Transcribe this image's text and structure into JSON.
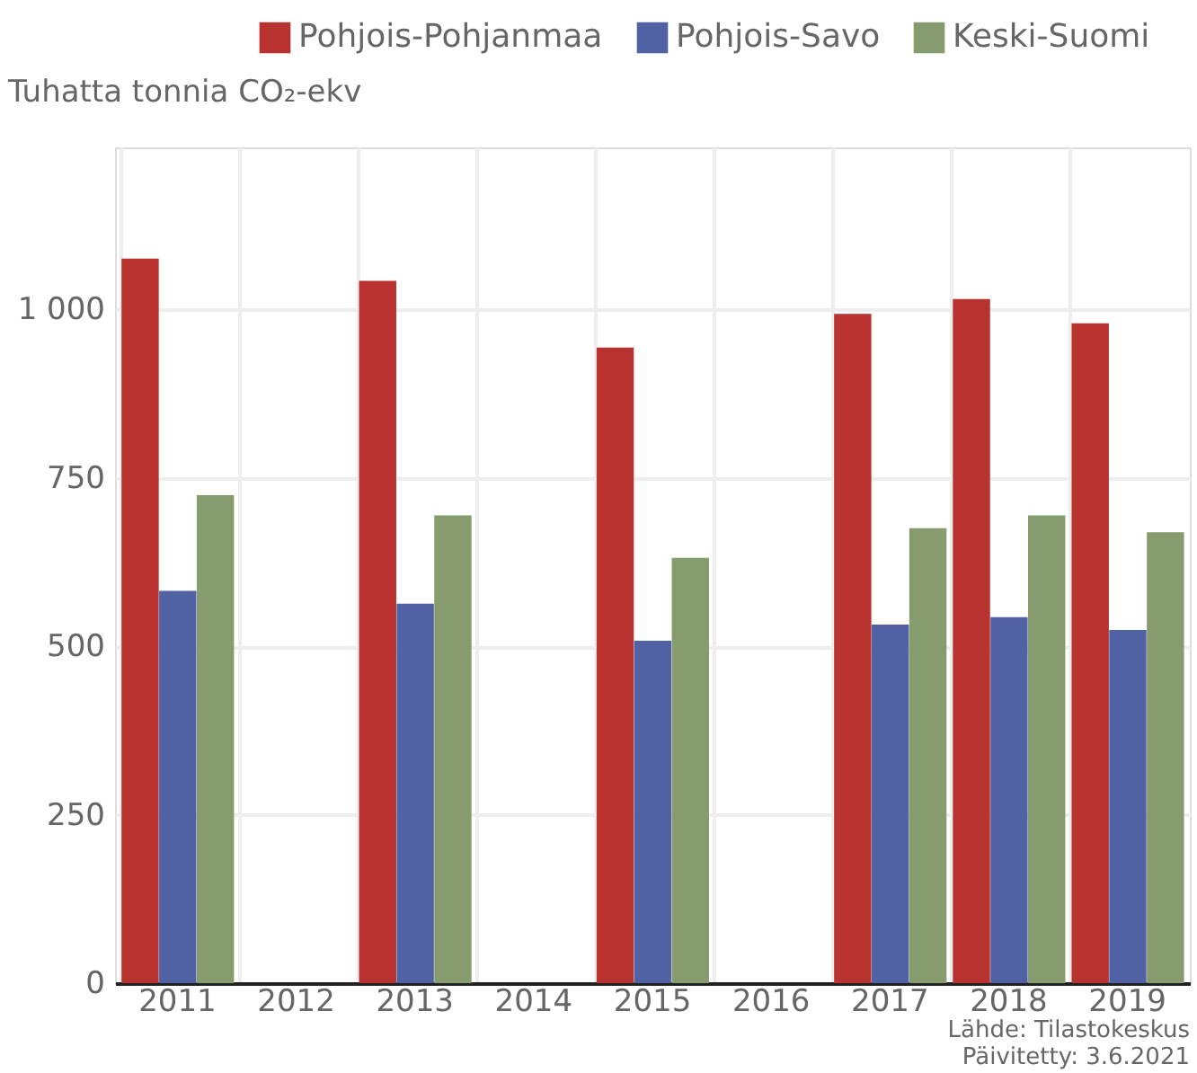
{
  "chart_data": {
    "type": "bar",
    "ylabel": "Tuhatta tonnia CO₂-ekv",
    "categories": [
      "2011",
      "2012",
      "2013",
      "2014",
      "2015",
      "2016",
      "2017",
      "2018",
      "2019"
    ],
    "series": [
      {
        "name": "Pohjois-Pohjanmaa",
        "color": "#b83230",
        "values": [
          1075,
          null,
          1042,
          null,
          943,
          null,
          993,
          1015,
          979
        ]
      },
      {
        "name": "Pohjois-Savo",
        "color": "#5062a4",
        "values": [
          582,
          null,
          563,
          null,
          508,
          null,
          532,
          543,
          524
        ]
      },
      {
        "name": "Keski-Suomi",
        "color": "#869b6e",
        "values": [
          724,
          null,
          694,
          null,
          631,
          null,
          675,
          694,
          669
        ]
      }
    ],
    "ylim": [
      0,
      1240
    ],
    "yticks": [
      0,
      250,
      500,
      750,
      {
        "value": 1000,
        "label": "1 000"
      }
    ],
    "grid": true,
    "legend": "top right",
    "annotations": [
      "Lähde: Tilastokeskus",
      "Päivitetty: 3.6.2021"
    ]
  }
}
